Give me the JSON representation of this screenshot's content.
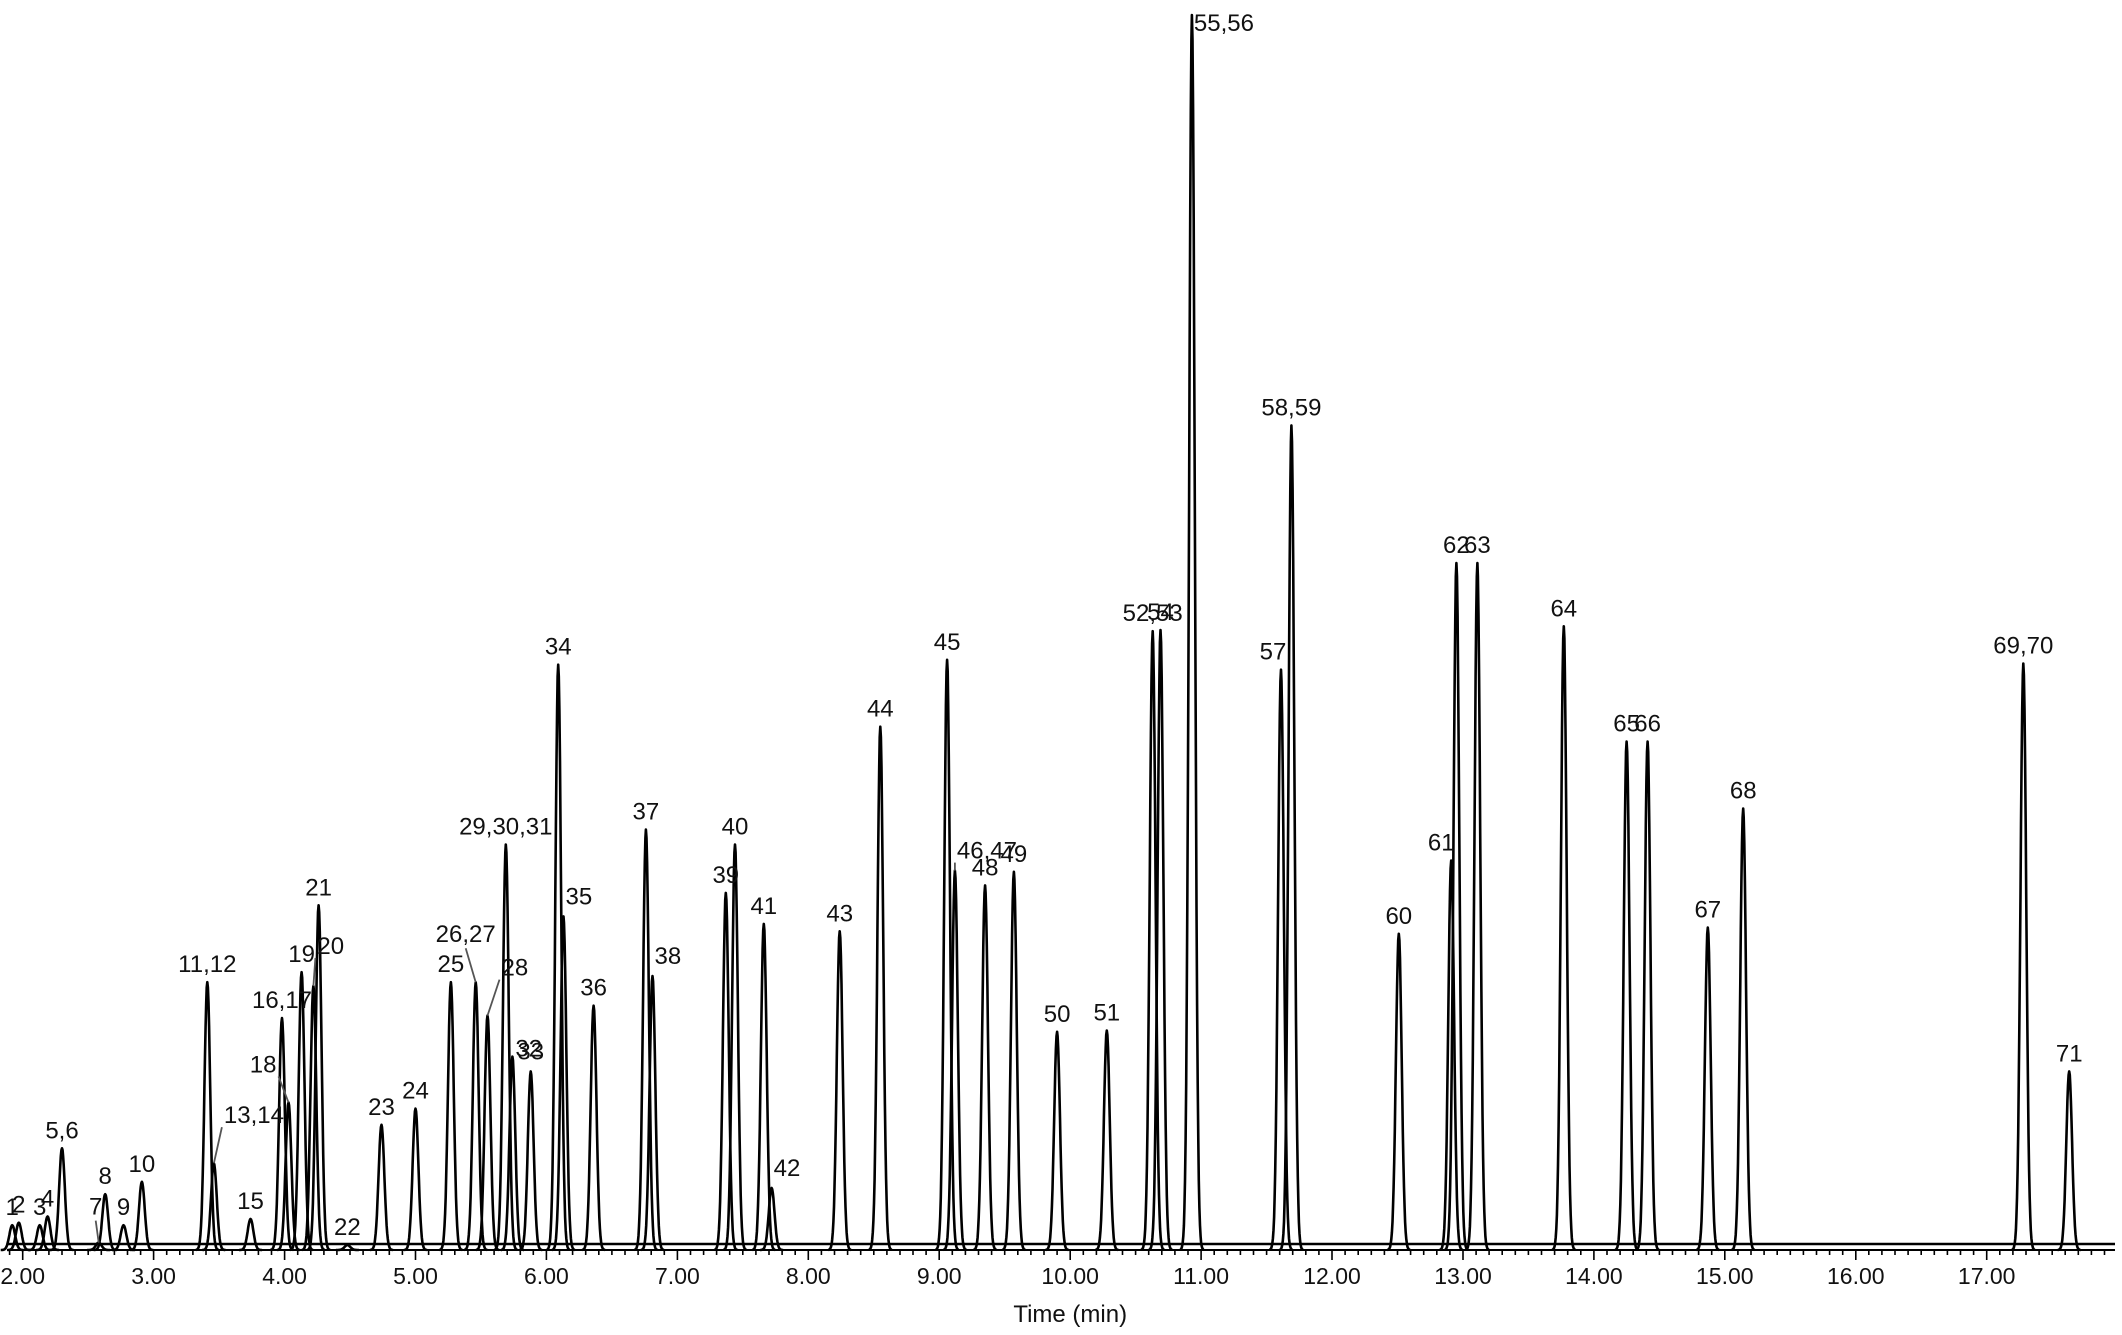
{
  "chart_data": {
    "type": "line",
    "title": "",
    "xlabel": "Time (min)",
    "ylabel": "",
    "xlim": [
      1.88,
      17.98
    ],
    "ylim": [
      0,
      100
    ],
    "grid": false,
    "legend": "none",
    "x_tick_labels": [
      "2.00",
      "3.00",
      "4.00",
      "5.00",
      "6.00",
      "7.00",
      "8.00",
      "9.00",
      "10.00",
      "11.00",
      "12.00",
      "13.00",
      "14.00",
      "15.00",
      "16.00",
      "17.00"
    ],
    "x_ticks": [
      2,
      3,
      4,
      5,
      6,
      7,
      8,
      9,
      10,
      11,
      12,
      13,
      14,
      15,
      16,
      17
    ],
    "peaks": [
      {
        "label": "1",
        "rt": 1.92,
        "height": 2.0
      },
      {
        "label": "2",
        "rt": 1.97,
        "height": 2.2
      },
      {
        "label": "3",
        "rt": 2.13,
        "height": 2.0
      },
      {
        "label": "4",
        "rt": 2.19,
        "height": 2.7
      },
      {
        "label": "5,6",
        "rt": 2.3,
        "height": 8.2
      },
      {
        "label": "7",
        "rt": 2.58,
        "height": 0.6
      },
      {
        "label": "8",
        "rt": 2.63,
        "height": 4.5
      },
      {
        "label": "9",
        "rt": 2.77,
        "height": 2.0
      },
      {
        "label": "10",
        "rt": 2.91,
        "height": 5.5
      },
      {
        "label": "11,12",
        "rt": 3.41,
        "height": 21.6
      },
      {
        "label": "13,14",
        "rt": 3.46,
        "height": 7.0
      },
      {
        "label": "15",
        "rt": 3.74,
        "height": 2.5
      },
      {
        "label": "16,17",
        "rt": 3.98,
        "height": 18.7
      },
      {
        "label": "18",
        "rt": 4.03,
        "height": 11.9
      },
      {
        "label": "19",
        "rt": 4.13,
        "height": 22.4
      },
      {
        "label": "20",
        "rt": 4.22,
        "height": 21.3
      },
      {
        "label": "21",
        "rt": 4.26,
        "height": 27.8
      },
      {
        "label": "22",
        "rt": 4.48,
        "height": 0.4
      },
      {
        "label": "23",
        "rt": 4.74,
        "height": 10.1
      },
      {
        "label": "24",
        "rt": 5.0,
        "height": 11.4
      },
      {
        "label": "25",
        "rt": 5.27,
        "height": 21.6
      },
      {
        "label": "26,27",
        "rt": 5.46,
        "height": 21.6
      },
      {
        "label": "28",
        "rt": 5.55,
        "height": 18.9
      },
      {
        "label": "29,30,31",
        "rt": 5.69,
        "height": 32.7
      },
      {
        "label": "32",
        "rt": 5.74,
        "height": 15.6
      },
      {
        "label": "33",
        "rt": 5.88,
        "height": 14.4
      },
      {
        "label": "34",
        "rt": 6.09,
        "height": 47.2
      },
      {
        "label": "35",
        "rt": 6.13,
        "height": 26.9
      },
      {
        "label": "36",
        "rt": 6.36,
        "height": 19.7
      },
      {
        "label": "37",
        "rt": 6.76,
        "height": 33.9
      },
      {
        "label": "38",
        "rt": 6.81,
        "height": 22.1
      },
      {
        "label": "39",
        "rt": 7.37,
        "height": 28.8
      },
      {
        "label": "40",
        "rt": 7.44,
        "height": 32.7
      },
      {
        "label": "41",
        "rt": 7.66,
        "height": 26.3
      },
      {
        "label": "42",
        "rt": 7.72,
        "height": 5.0
      },
      {
        "label": "43",
        "rt": 8.24,
        "height": 25.7
      },
      {
        "label": "44",
        "rt": 8.55,
        "height": 42.2
      },
      {
        "label": "45",
        "rt": 9.06,
        "height": 47.6
      },
      {
        "label": "46,47",
        "rt": 9.12,
        "height": 30.6
      },
      {
        "label": "48",
        "rt": 9.35,
        "height": 29.4
      },
      {
        "label": "49",
        "rt": 9.57,
        "height": 30.5
      },
      {
        "label": "50",
        "rt": 9.9,
        "height": 17.6
      },
      {
        "label": "51",
        "rt": 10.28,
        "height": 17.7
      },
      {
        "label": "52,53",
        "rt": 10.63,
        "height": 49.9
      },
      {
        "label": "54",
        "rt": 10.69,
        "height": 50.0
      },
      {
        "label": "55,56",
        "rt": 10.93,
        "height": 99.6
      },
      {
        "label": "57",
        "rt": 11.61,
        "height": 46.8
      },
      {
        "label": "58,59",
        "rt": 11.69,
        "height": 66.5
      },
      {
        "label": "60",
        "rt": 12.51,
        "height": 25.5
      },
      {
        "label": "61",
        "rt": 12.91,
        "height": 31.4
      },
      {
        "label": "62",
        "rt": 12.95,
        "height": 55.4
      },
      {
        "label": "63",
        "rt": 13.11,
        "height": 55.4
      },
      {
        "label": "64",
        "rt": 13.77,
        "height": 50.3
      },
      {
        "label": "65",
        "rt": 14.25,
        "height": 41.0
      },
      {
        "label": "66",
        "rt": 14.41,
        "height": 41.0
      },
      {
        "label": "67",
        "rt": 14.87,
        "height": 26.0
      },
      {
        "label": "68",
        "rt": 15.14,
        "height": 35.6
      },
      {
        "label": "69,70",
        "rt": 17.28,
        "height": 47.3
      },
      {
        "label": "71",
        "rt": 17.63,
        "height": 14.4
      }
    ]
  }
}
